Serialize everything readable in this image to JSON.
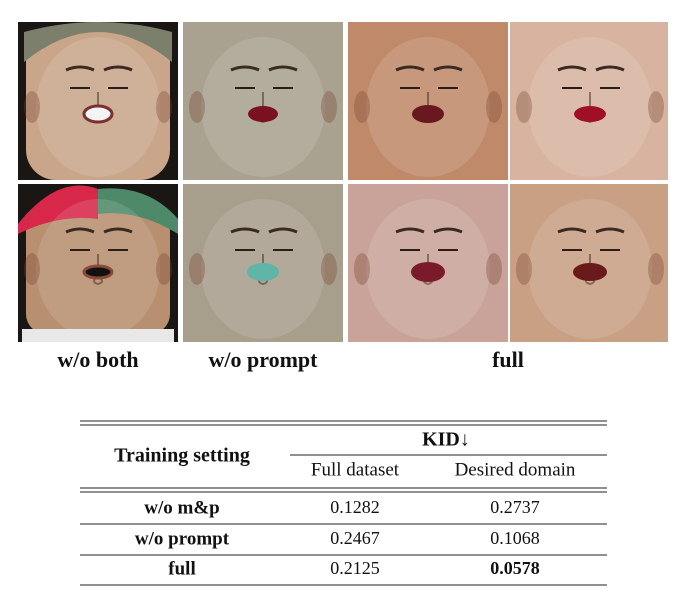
{
  "figure": {
    "captions": [
      "w/o both",
      "w/o prompt",
      "full"
    ]
  },
  "table": {
    "header": {
      "setting": "Training setting",
      "group": "KID↓",
      "columns": [
        "Full dataset",
        "Desired domain"
      ]
    },
    "rows": [
      [
        "w/o m&p",
        "0.1282",
        "0.2737"
      ],
      [
        "w/o prompt",
        "0.2467",
        "0.1068"
      ],
      [
        "full",
        "0.2125",
        "0.0578"
      ]
    ]
  }
}
